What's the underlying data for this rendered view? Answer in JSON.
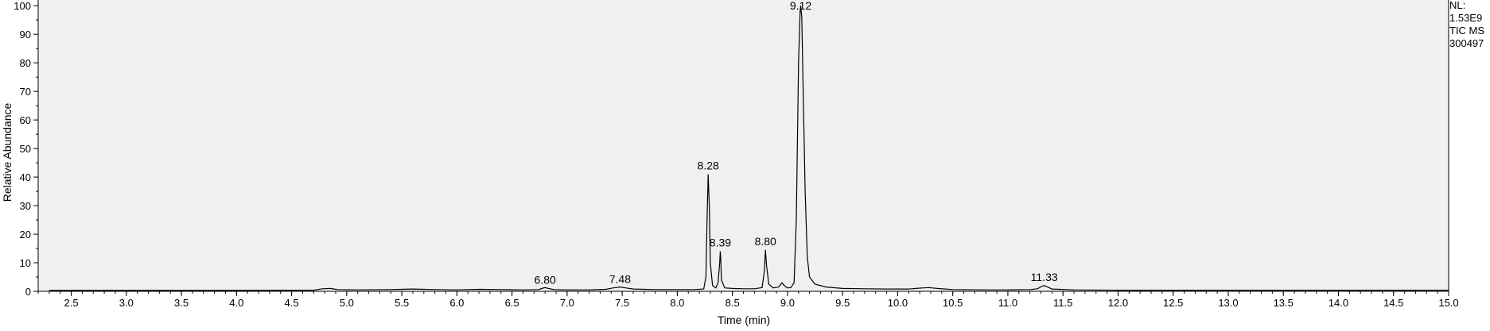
{
  "chart_data": {
    "type": "line",
    "xlabel": "Time (min)",
    "ylabel": "Relative Abundance",
    "xlim": [
      2.2,
      15.0
    ],
    "ylim": [
      0,
      102
    ],
    "x_ticks": [
      "2.5",
      "3.0",
      "3.5",
      "4.0",
      "4.5",
      "5.0",
      "5.5",
      "6.0",
      "6.5",
      "7.0",
      "7.5",
      "8.0",
      "8.5",
      "9.0",
      "9.5",
      "10.0",
      "10.5",
      "11.0",
      "11.5",
      "12.0",
      "12.5",
      "13.0",
      "13.5",
      "14.0",
      "14.5",
      "15.0"
    ],
    "y_ticks": [
      "0",
      "10",
      "20",
      "30",
      "40",
      "50",
      "60",
      "70",
      "80",
      "90",
      "100"
    ],
    "info": [
      "NL:",
      "1.53E9",
      "TIC  MS",
      "300497"
    ],
    "peak_labels": [
      {
        "text": "6.80",
        "x": 6.8,
        "y": 1.0
      },
      {
        "text": "7.48",
        "x": 7.48,
        "y": 1.2
      },
      {
        "text": "8.28",
        "x": 8.28,
        "y": 41.0
      },
      {
        "text": "8.39",
        "x": 8.39,
        "y": 14.0
      },
      {
        "text": "8.80",
        "x": 8.8,
        "y": 14.5
      },
      {
        "text": "9.12",
        "x": 9.12,
        "y": 100.0
      },
      {
        "text": "11.33",
        "x": 11.33,
        "y": 2.0
      }
    ],
    "series": [
      {
        "points": [
          [
            2.3,
            0.3
          ],
          [
            3.0,
            0.3
          ],
          [
            4.0,
            0.3
          ],
          [
            4.7,
            0.4
          ],
          [
            4.78,
            0.9
          ],
          [
            4.85,
            1.0
          ],
          [
            4.92,
            0.6
          ],
          [
            5.1,
            0.5
          ],
          [
            5.4,
            0.6
          ],
          [
            5.6,
            0.8
          ],
          [
            5.8,
            0.6
          ],
          [
            6.0,
            0.5
          ],
          [
            6.2,
            0.7
          ],
          [
            6.4,
            0.6
          ],
          [
            6.6,
            0.5
          ],
          [
            6.74,
            0.6
          ],
          [
            6.78,
            1.1
          ],
          [
            6.8,
            1.3
          ],
          [
            6.83,
            1.0
          ],
          [
            6.88,
            0.6
          ],
          [
            7.0,
            0.5
          ],
          [
            7.2,
            0.5
          ],
          [
            7.35,
            0.7
          ],
          [
            7.42,
            1.2
          ],
          [
            7.48,
            1.5
          ],
          [
            7.53,
            1.2
          ],
          [
            7.6,
            0.8
          ],
          [
            7.8,
            0.6
          ],
          [
            8.0,
            0.6
          ],
          [
            8.15,
            0.6
          ],
          [
            8.24,
            0.8
          ],
          [
            8.26,
            5.0
          ],
          [
            8.27,
            25.0
          ],
          [
            8.28,
            41.0
          ],
          [
            8.29,
            30.0
          ],
          [
            8.3,
            10.0
          ],
          [
            8.32,
            2.0
          ],
          [
            8.35,
            1.2
          ],
          [
            8.37,
            3.0
          ],
          [
            8.385,
            10.0
          ],
          [
            8.39,
            14.0
          ],
          [
            8.395,
            11.0
          ],
          [
            8.4,
            4.0
          ],
          [
            8.43,
            1.2
          ],
          [
            8.5,
            1.0
          ],
          [
            8.6,
            0.9
          ],
          [
            8.7,
            0.9
          ],
          [
            8.77,
            1.3
          ],
          [
            8.79,
            7.0
          ],
          [
            8.8,
            14.5
          ],
          [
            8.81,
            9.0
          ],
          [
            8.83,
            2.5
          ],
          [
            8.87,
            1.2
          ],
          [
            8.92,
            1.5
          ],
          [
            8.95,
            3.0
          ],
          [
            8.97,
            2.0
          ],
          [
            9.0,
            1.2
          ],
          [
            9.03,
            1.3
          ],
          [
            9.06,
            3.0
          ],
          [
            9.08,
            25.0
          ],
          [
            9.1,
            80.0
          ],
          [
            9.115,
            98.0
          ],
          [
            9.12,
            100.0
          ],
          [
            9.13,
            96.0
          ],
          [
            9.14,
            75.0
          ],
          [
            9.16,
            35.0
          ],
          [
            9.18,
            12.0
          ],
          [
            9.2,
            5.0
          ],
          [
            9.25,
            2.5
          ],
          [
            9.35,
            1.5
          ],
          [
            9.5,
            1.0
          ],
          [
            9.7,
            0.9
          ],
          [
            9.9,
            0.8
          ],
          [
            10.1,
            0.8
          ],
          [
            10.2,
            1.1
          ],
          [
            10.28,
            1.3
          ],
          [
            10.36,
            1.0
          ],
          [
            10.5,
            0.6
          ],
          [
            10.8,
            0.5
          ],
          [
            11.0,
            0.5
          ],
          [
            11.2,
            0.6
          ],
          [
            11.27,
            0.9
          ],
          [
            11.3,
            1.6
          ],
          [
            11.33,
            2.0
          ],
          [
            11.36,
            1.5
          ],
          [
            11.4,
            0.8
          ],
          [
            11.6,
            0.5
          ],
          [
            12.0,
            0.4
          ],
          [
            13.0,
            0.4
          ],
          [
            14.0,
            0.4
          ],
          [
            15.0,
            0.4
          ]
        ]
      }
    ]
  }
}
